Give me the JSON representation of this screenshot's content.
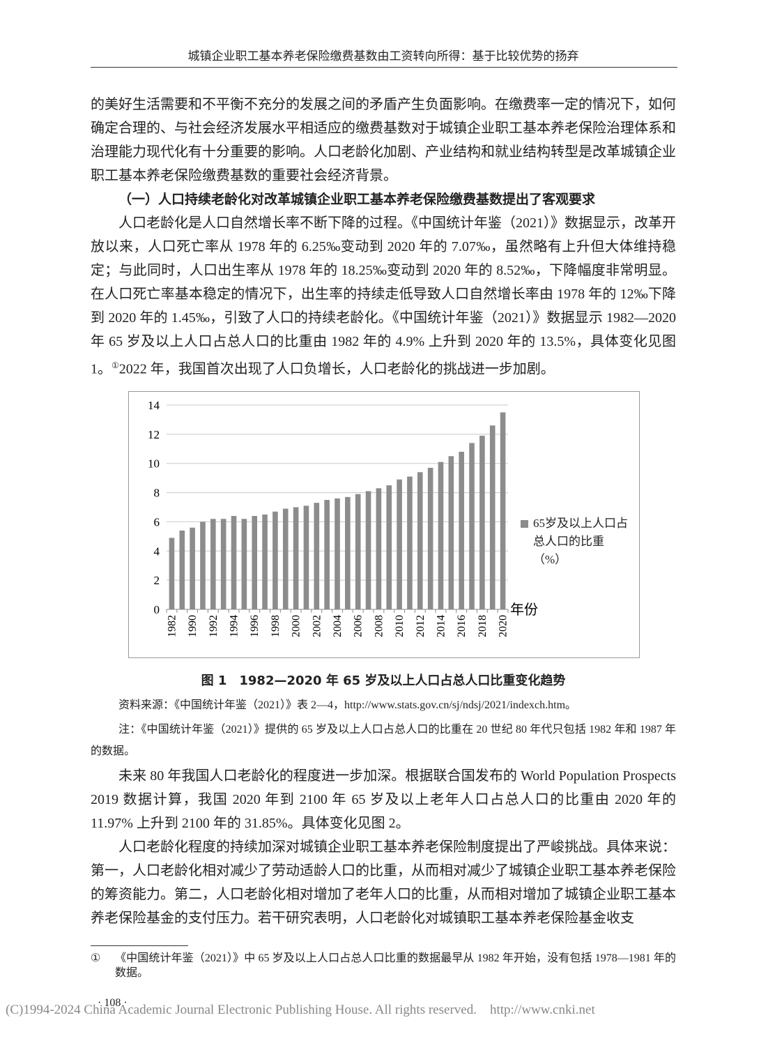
{
  "header": {
    "title": "城镇企业职工基本养老保险缴费基数由工资转向所得：基于比较优势的扬弃"
  },
  "body": {
    "paragraph_1": "的美好生活需要和不平衡不充分的发展之间的矛盾产生负面影响。在缴费率一定的情况下，如何确定合理的、与社会经济发展水平相适应的缴费基数对于城镇企业职工基本养老保险治理体系和治理能力现代化有十分重要的影响。人口老龄化加剧、产业结构和就业结构转型是改革城镇企业职工基本养老保险缴费基数的重要社会经济背景。",
    "section_heading": "（一）人口持续老龄化对改革城镇企业职工基本养老保险缴费基数提出了客观要求",
    "paragraph_2": {
      "text_before_note": "人口老龄化是人口自然增长率不断下降的过程。《中国统计年鉴（2021）》数据显示，改革开放以来，人口死亡率从 1978 年的 6.25‰变动到 2020 年的 7.07‰，虽然略有上升但大体维持稳定；与此同时，人口出生率从 1978 年的 18.25‰变动到 2020 年的 8.52‰，下降幅度非常明显。在人口死亡率基本稳定的情况下，出生率的持续走低导致人口自然增长率由 1978 年的 12‰下降到 2020 年的 1.45‰，引致了人口的持续老龄化。《中国统计年鉴（2021）》数据显示 1982—2020 年 65 岁及以上人口占总人口的比重由 1982 年的 4.9% 上升到 2020 年的 13.5%，具体变化见图 1。",
      "note_mark": "①",
      "text_after_note": "2022 年，我国首次出现了人口负增长，人口老龄化的挑战进一步加剧。"
    },
    "figure_caption": "图 1　1982—2020 年 65 岁及以上人口占总人口比重变化趋势",
    "figure_source": "资料来源：《中国统计年鉴（2021）》表 2—4，http://www.stats.gov.cn/sj/ndsj/2021/indexch.htm。",
    "figure_note": "注：《中国统计年鉴（2021）》提供的 65 岁及以上人口占总人口的比重在 20 世纪 80 年代只包括 1982 年和 1987 年的数据。",
    "paragraph_3": "未来 80 年我国人口老龄化的程度进一步加深。根据联合国发布的 World Population Prospects 2019 数据计算，我国 2020 年到 2100 年 65 岁及以上老年人口占总人口的比重由 2020 年的 11.97% 上升到 2100 年的 31.85%。具体变化见图 2。",
    "paragraph_4": "人口老龄化程度的持续加深对城镇企业职工基本养老保险制度提出了严峻挑战。具体来说：第一，人口老龄化相对减少了劳动适龄人口的比重，从而相对减少了城镇企业职工基本养老保险的筹资能力。第二，人口老龄化相对增加了老年人口的比重，从而相对增加了城镇企业职工基本养老保险基金的支付压力。若干研究表明，人口老龄化对城镇职工基本养老保险基金收支"
  },
  "footnote": {
    "mark": "①",
    "text": "《中国统计年鉴（2021）》中 65 岁及以上人口占总人口比重的数据最早从 1982 年开始，没有包括 1978—1981 年的数据。"
  },
  "page_number": "· 108 ·",
  "copyright": {
    "notice": "(C)1994-2024 China Academic Journal Electronic Publishing House. All rights reserved.",
    "url": "http://www.cnki.net"
  },
  "chart_data": {
    "type": "bar",
    "x_label": "年份",
    "categories": [
      "1982",
      null,
      "1990",
      null,
      "1992",
      null,
      "1994",
      null,
      "1996",
      null,
      "1998",
      null,
      "2000",
      null,
      "2002",
      null,
      "2004",
      null,
      "2006",
      null,
      "2008",
      null,
      "2010",
      null,
      "2012",
      null,
      "2014",
      null,
      "2016",
      null,
      "2018",
      null,
      "2020"
    ],
    "series": [
      {
        "name": "65岁及以上人口占总人口的比重（%）",
        "color": "#8c8c8c",
        "values": [
          4.9,
          5.4,
          5.6,
          6.0,
          6.2,
          6.2,
          6.4,
          6.2,
          6.4,
          6.5,
          6.7,
          6.9,
          7.0,
          7.1,
          7.3,
          7.5,
          7.6,
          7.7,
          7.9,
          8.1,
          8.3,
          8.5,
          8.9,
          9.1,
          9.4,
          9.7,
          10.1,
          10.5,
          10.8,
          11.4,
          11.9,
          12.6,
          13.5
        ]
      }
    ],
    "ylim": [
      0,
      14
    ],
    "yticks": [
      0,
      2,
      4,
      6,
      8,
      10,
      12,
      14
    ],
    "grid": true,
    "legend": "right"
  }
}
